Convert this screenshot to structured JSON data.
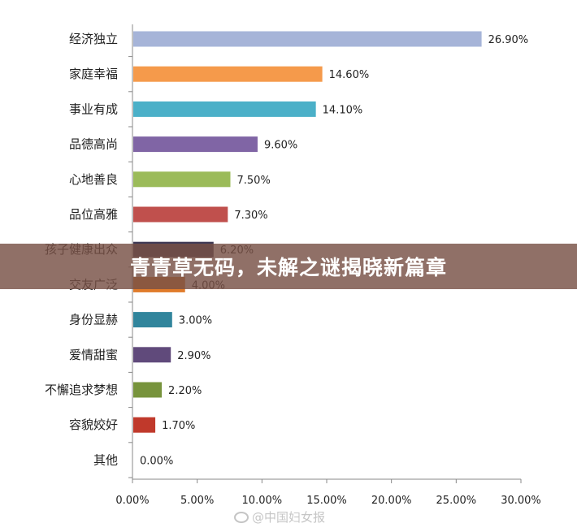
{
  "chart_data": {
    "type": "bar",
    "orientation": "horizontal",
    "categories": [
      "经济独立",
      "家庭幸福",
      "事业有成",
      "品德高尚",
      "心地善良",
      "品位高雅",
      "孩子健康出众",
      "交友广泛",
      "身份显赫",
      "爱情甜蜜",
      "不懈追求梦想",
      "容貌姣好",
      "其他"
    ],
    "values": [
      26.9,
      14.6,
      14.1,
      9.6,
      7.5,
      7.3,
      6.2,
      4.0,
      3.0,
      2.9,
      2.2,
      1.7,
      0.0
    ],
    "value_labels": [
      "26.90%",
      "14.60%",
      "14.10%",
      "9.60%",
      "7.50%",
      "7.30%",
      "6.20%",
      "4.00%",
      "3.00%",
      "2.90%",
      "2.20%",
      "1.70%",
      "0.00%"
    ],
    "colors": [
      "#a6b4d8",
      "#f59a4b",
      "#4bb0c8",
      "#8065a5",
      "#9bbb59",
      "#c0504d",
      "#3f3a55",
      "#e07b2a",
      "#31859c",
      "#604a7b",
      "#77933c",
      "#c0392b",
      "#4f81bd"
    ],
    "xticks": [
      "0.00%",
      "5.00%",
      "10.00%",
      "15.00%",
      "20.00%",
      "25.00%",
      "30.00%"
    ],
    "xlim": [
      0,
      30
    ],
    "grid": false,
    "legend": "none",
    "title": "",
    "xlabel": "",
    "ylabel": ""
  },
  "overlay": {
    "banner_text": "青青草无码，未解之谜揭晓新篇章",
    "watermark_text": "@中国妇女报"
  }
}
